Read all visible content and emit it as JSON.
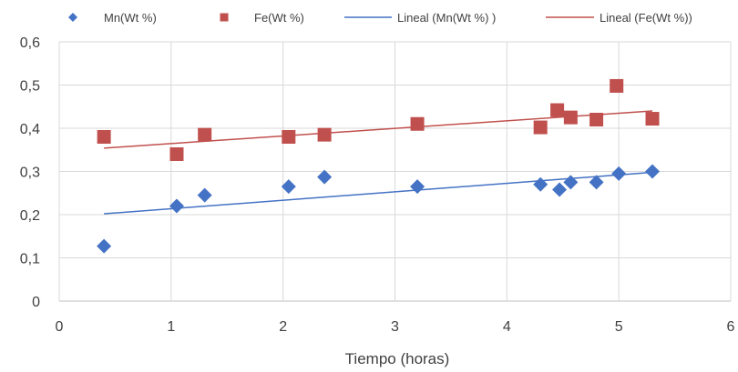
{
  "chart_data": {
    "type": "scatter",
    "title": "",
    "xlabel": "Tiempo (horas)",
    "ylabel": "",
    "xlim": [
      0,
      6
    ],
    "ylim": [
      0,
      0.6
    ],
    "x_ticks": [
      "0",
      "1",
      "2",
      "3",
      "4",
      "5",
      "6"
    ],
    "y_ticks": [
      "0",
      "0,1",
      "0,2",
      "0,3",
      "0,4",
      "0,5",
      "0,6"
    ],
    "grid": true,
    "legend_position": "top",
    "series": [
      {
        "name": "Mn(Wt %)",
        "marker": "diamond",
        "color": "#4472C4",
        "points": [
          [
            0.4,
            0.127
          ],
          [
            1.05,
            0.22
          ],
          [
            1.3,
            0.245
          ],
          [
            2.05,
            0.265
          ],
          [
            2.37,
            0.287
          ],
          [
            3.2,
            0.265
          ],
          [
            4.3,
            0.27
          ],
          [
            4.47,
            0.258
          ],
          [
            4.57,
            0.275
          ],
          [
            4.8,
            0.275
          ],
          [
            5.0,
            0.295
          ],
          [
            5.3,
            0.3
          ]
        ]
      },
      {
        "name": "Fe(Wt %)",
        "marker": "square",
        "color": "#C0504D",
        "points": [
          [
            0.4,
            0.38
          ],
          [
            1.05,
            0.34
          ],
          [
            1.3,
            0.385
          ],
          [
            2.05,
            0.38
          ],
          [
            2.37,
            0.385
          ],
          [
            3.2,
            0.41
          ],
          [
            4.3,
            0.402
          ],
          [
            4.45,
            0.442
          ],
          [
            4.57,
            0.425
          ],
          [
            4.8,
            0.42
          ],
          [
            4.98,
            0.498
          ],
          [
            5.3,
            0.422
          ]
        ]
      }
    ],
    "trendlines": [
      {
        "name": "Lineal (Mn(Wt %) )",
        "color": "#4472C4",
        "x": [
          0.4,
          5.3
        ],
        "y": [
          0.202,
          0.298
        ]
      },
      {
        "name": "Lineal (Fe(Wt %))",
        "color": "#C0504D",
        "x": [
          0.4,
          5.3
        ],
        "y": [
          0.354,
          0.44
        ]
      }
    ]
  }
}
